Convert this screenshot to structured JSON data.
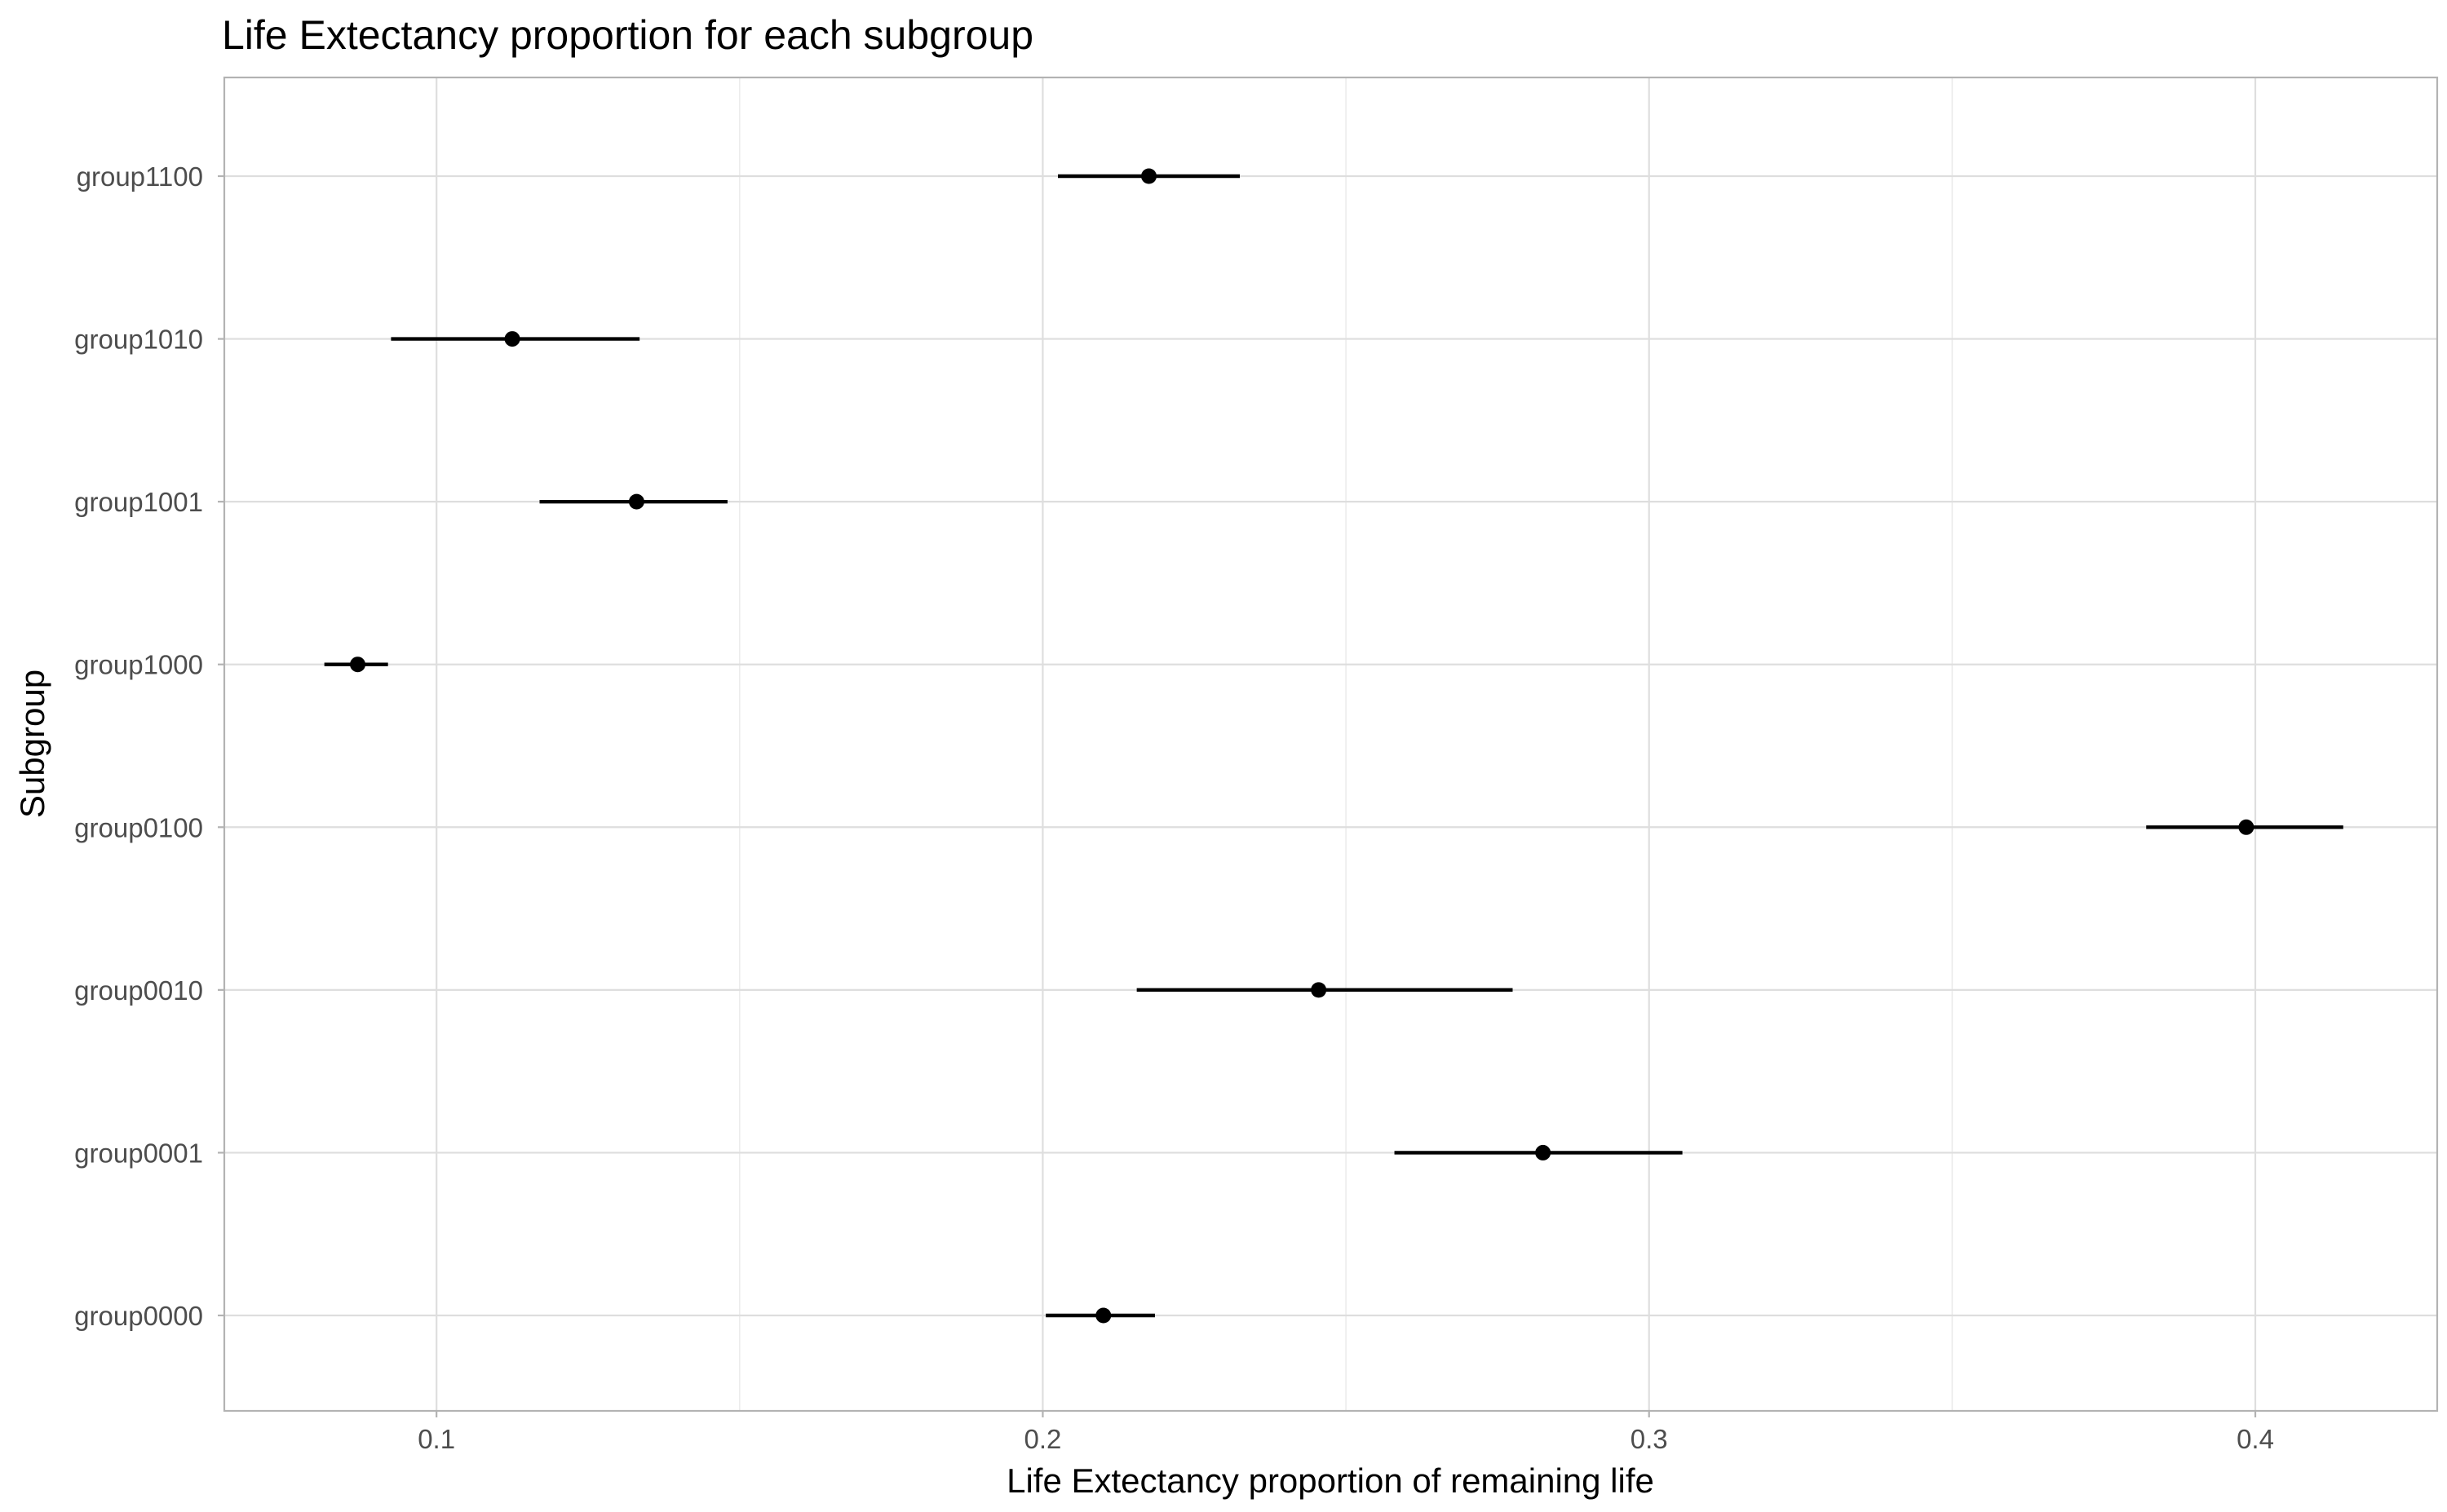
{
  "chart_data": {
    "type": "scatter",
    "title": "Life Extectancy proportion for each subgroup",
    "xlabel": "Life Extectancy proportion of remaining life",
    "ylabel": "Subgroup",
    "xlim": [
      0.065,
      0.43
    ],
    "xticks": [
      0.1,
      0.2,
      0.3,
      0.4
    ],
    "xtick_labels": [
      "0.1",
      "0.2",
      "0.3",
      "0.4"
    ],
    "x_minor": [
      0.15,
      0.25,
      0.35
    ],
    "categories": [
      "group0000",
      "group0001",
      "group0010",
      "group0100",
      "group1000",
      "group1001",
      "group1010",
      "group1100"
    ],
    "points": [
      {
        "group": "group0000",
        "estimate": 0.21,
        "lower": 0.2005,
        "upper": 0.2185
      },
      {
        "group": "group0001",
        "estimate": 0.2825,
        "lower": 0.258,
        "upper": 0.3055
      },
      {
        "group": "group0010",
        "estimate": 0.2455,
        "lower": 0.2155,
        "upper": 0.2775
      },
      {
        "group": "group0100",
        "estimate": 0.3985,
        "lower": 0.382,
        "upper": 0.4145
      },
      {
        "group": "group1000",
        "estimate": 0.087,
        "lower": 0.0815,
        "upper": 0.092
      },
      {
        "group": "group1001",
        "estimate": 0.133,
        "lower": 0.117,
        "upper": 0.148
      },
      {
        "group": "group1010",
        "estimate": 0.1125,
        "lower": 0.0925,
        "upper": 0.1335
      },
      {
        "group": "group1100",
        "estimate": 0.2175,
        "lower": 0.2025,
        "upper": 0.2325
      }
    ],
    "grid": true,
    "legend": "none"
  }
}
